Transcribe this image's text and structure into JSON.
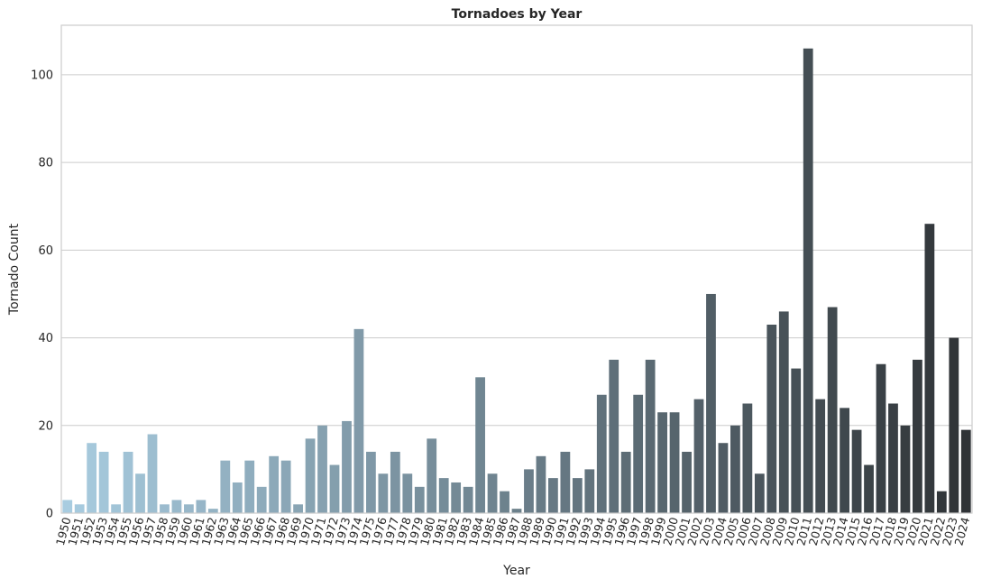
{
  "chart_data": {
    "type": "bar",
    "title": "Tornadoes by Year",
    "xlabel": "Year",
    "ylabel": "Tornado Count",
    "ylim": [
      0,
      111.3
    ],
    "yticks": [
      0,
      20,
      40,
      60,
      80,
      100
    ],
    "grid": "horizontal",
    "palette": [
      "#a8cce0",
      "#2f3336"
    ],
    "categories": [
      "1950",
      "1951",
      "1952",
      "1953",
      "1954",
      "1955",
      "1956",
      "1957",
      "1958",
      "1959",
      "1960",
      "1961",
      "1962",
      "1963",
      "1964",
      "1965",
      "1966",
      "1967",
      "1968",
      "1969",
      "1970",
      "1971",
      "1972",
      "1973",
      "1974",
      "1975",
      "1976",
      "1977",
      "1978",
      "1979",
      "1980",
      "1981",
      "1982",
      "1983",
      "1984",
      "1985",
      "1986",
      "1987",
      "1988",
      "1989",
      "1990",
      "1991",
      "1992",
      "1993",
      "1994",
      "1995",
      "1996",
      "1997",
      "1998",
      "1999",
      "2000",
      "2001",
      "2002",
      "2003",
      "2004",
      "2005",
      "2006",
      "2007",
      "2008",
      "2009",
      "2010",
      "2011",
      "2012",
      "2013",
      "2014",
      "2015",
      "2016",
      "2017",
      "2018",
      "2019",
      "2020",
      "2021",
      "2022",
      "2023",
      "2024"
    ],
    "values": [
      3,
      2,
      16,
      14,
      2,
      14,
      9,
      18,
      2,
      3,
      2,
      3,
      1,
      12,
      7,
      12,
      6,
      13,
      12,
      2,
      17,
      20,
      11,
      21,
      42,
      14,
      9,
      14,
      9,
      6,
      17,
      8,
      7,
      6,
      31,
      9,
      5,
      1,
      10,
      13,
      8,
      14,
      8,
      10,
      27,
      35,
      14,
      27,
      35,
      23,
      23,
      14,
      26,
      50,
      16,
      20,
      25,
      9,
      43,
      46,
      33,
      106,
      26,
      47,
      24,
      19,
      11,
      34,
      25,
      20,
      35,
      66,
      5,
      40,
      19
    ]
  }
}
